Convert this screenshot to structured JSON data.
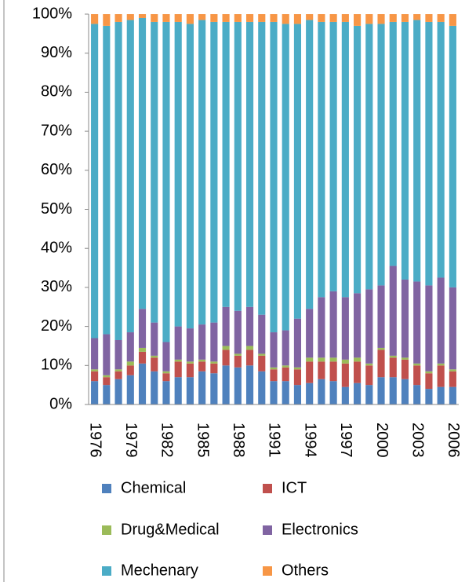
{
  "chart_data": {
    "type": "stacked_bar",
    "categories": [
      "1976",
      null,
      null,
      "1979",
      null,
      null,
      "1982",
      null,
      null,
      "1985",
      null,
      null,
      "1988",
      null,
      null,
      "1991",
      null,
      null,
      "1994",
      null,
      null,
      "1997",
      null,
      null,
      "2000",
      null,
      null,
      "2003",
      null,
      null,
      "2006"
    ],
    "ylim": [
      0,
      100
    ],
    "yticks": [
      {
        "value": 0,
        "label": "0%"
      },
      {
        "value": 10,
        "label": "10%"
      },
      {
        "value": 20,
        "label": "20%"
      },
      {
        "value": 30,
        "label": "30%"
      },
      {
        "value": 40,
        "label": "40%"
      },
      {
        "value": 50,
        "label": "50%"
      },
      {
        "value": 60,
        "label": "60%"
      },
      {
        "value": 70,
        "label": "70%"
      },
      {
        "value": 80,
        "label": "80%"
      },
      {
        "value": 90,
        "label": "90%"
      },
      {
        "value": 100,
        "label": "100%"
      }
    ],
    "grid": false,
    "legend": "bottom",
    "series": [
      {
        "name": "Chemical",
        "color": "#4f81bd",
        "values": [
          6,
          5,
          6.5,
          7.5,
          10.5,
          8.5,
          6,
          7,
          7,
          8.5,
          8,
          10,
          9.5,
          10,
          8.5,
          6,
          6,
          5,
          5.5,
          6.5,
          6,
          4.5,
          5.5,
          5,
          7,
          7,
          6.5,
          5,
          4,
          4.5,
          4.5
        ]
      },
      {
        "name": "ICT",
        "color": "#c0504d",
        "values": [
          2.5,
          2,
          2,
          2.5,
          3,
          3.5,
          2,
          4,
          3.5,
          2.5,
          2.5,
          4,
          3,
          4,
          4,
          3,
          3.5,
          4,
          5.5,
          4.5,
          5,
          6,
          5.5,
          5,
          7,
          5,
          5,
          5,
          4,
          5.5,
          4
        ]
      },
      {
        "name": "Drug&Medical",
        "color": "#9bbb59",
        "values": [
          0.5,
          0.5,
          0.5,
          1,
          1,
          0.5,
          0.5,
          0.5,
          0.5,
          0.5,
          0.5,
          1,
          0.5,
          1,
          0.5,
          0.5,
          0.5,
          0.5,
          1,
          1,
          1,
          1,
          1,
          0.5,
          0.5,
          0.5,
          0.5,
          0.5,
          0.5,
          0.5,
          0.5
        ]
      },
      {
        "name": "Electronics",
        "color": "#8064a2",
        "values": [
          8,
          10.5,
          7.5,
          7.5,
          10,
          8.5,
          7.5,
          8.5,
          8.5,
          9,
          10,
          10,
          11,
          10,
          10,
          9,
          9,
          12.5,
          12.5,
          15.5,
          17,
          16,
          16.5,
          19,
          16,
          23,
          20,
          21,
          22,
          22,
          21
        ]
      },
      {
        "name": "Mechenary",
        "color": "#4bacc6",
        "values": [
          80.5,
          79,
          81.5,
          80,
          74.5,
          77,
          82,
          78,
          78,
          78,
          77,
          73,
          74,
          73,
          75,
          79.5,
          78.5,
          75.5,
          74,
          70.5,
          69,
          70.5,
          68.5,
          68,
          67,
          62.5,
          66,
          67,
          67.5,
          65.5,
          67
        ]
      },
      {
        "name": "Others",
        "color": "#f79646",
        "values": [
          2.5,
          3,
          2,
          1.5,
          1,
          2,
          2,
          2,
          2.5,
          1.5,
          2,
          2,
          2,
          2,
          2,
          2,
          2.5,
          2.5,
          1.5,
          2,
          2,
          2,
          3,
          2.5,
          2.5,
          2,
          2,
          1.5,
          2,
          2,
          3
        ]
      }
    ]
  }
}
